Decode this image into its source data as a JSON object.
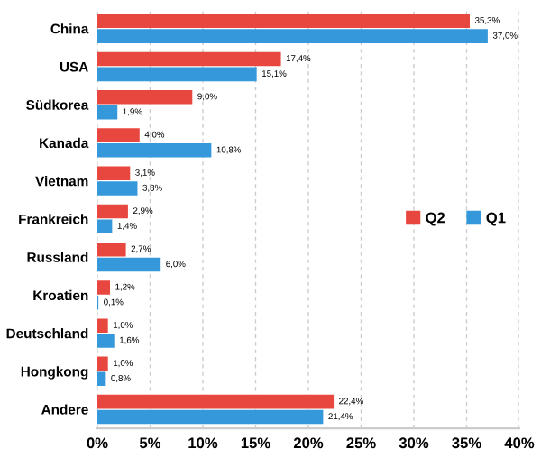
{
  "chart_data": {
    "type": "bar",
    "orientation": "horizontal",
    "categories": [
      "China",
      "USA",
      "Südkorea",
      "Kanada",
      "Vietnam",
      "Frankreich",
      "Russland",
      "Kroatien",
      "Deutschland",
      "Hongkong",
      "Andere"
    ],
    "series": [
      {
        "name": "Q2",
        "color": "#e8473f",
        "values": [
          35.3,
          17.4,
          9.0,
          4.0,
          3.1,
          2.9,
          2.7,
          1.2,
          1.0,
          1.0,
          22.4
        ],
        "value_labels": [
          "35,3%",
          "17,4%",
          "9,0%",
          "4,0%",
          "3,1%",
          "2,9%",
          "2,7%",
          "1,2%",
          "1,0%",
          "1,0%",
          "22,4%"
        ]
      },
      {
        "name": "Q1",
        "color": "#3498db",
        "values": [
          37.0,
          15.1,
          1.9,
          10.8,
          3.8,
          1.4,
          6.0,
          0.1,
          1.6,
          0.8,
          21.4
        ],
        "value_labels": [
          "37,0%",
          "15,1%",
          "1,9%",
          "10,8%",
          "3,8%",
          "1,4%",
          "6,0%",
          "0,1%",
          "1,6%",
          "0,8%",
          "21,4%"
        ]
      }
    ],
    "xlim": [
      0,
      40
    ],
    "xticks": [
      {
        "value": 0,
        "label": "0%"
      },
      {
        "value": 5,
        "label": "5%"
      },
      {
        "value": 10,
        "label": "10%"
      },
      {
        "value": 15,
        "label": "15%"
      },
      {
        "value": 20,
        "label": "20%"
      },
      {
        "value": 25,
        "label": "25%"
      },
      {
        "value": 30,
        "label": "30%"
      },
      {
        "value": 35,
        "label": "35%"
      },
      {
        "value": 40,
        "label": "40%"
      }
    ],
    "grid": "x",
    "legend": "right"
  }
}
